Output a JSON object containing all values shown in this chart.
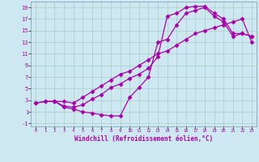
{
  "xlabel": "Windchill (Refroidissement éolien,°C)",
  "bg_color": "#cde8f0",
  "grid_color": "#aacccc",
  "line_color": "#aa00aa",
  "xlim": [
    -0.5,
    23.5
  ],
  "ylim": [
    -1.5,
    20
  ],
  "xticks": [
    0,
    1,
    2,
    3,
    4,
    5,
    6,
    7,
    8,
    9,
    10,
    11,
    12,
    13,
    14,
    15,
    16,
    17,
    18,
    19,
    20,
    21,
    22,
    23
  ],
  "yticks": [
    -1,
    1,
    3,
    5,
    7,
    9,
    11,
    13,
    15,
    17,
    19
  ],
  "line1_x": [
    0,
    1,
    2,
    3,
    4,
    5,
    6,
    7,
    8,
    9,
    10,
    11,
    12,
    13,
    14,
    15,
    16,
    17,
    18,
    19,
    20,
    21,
    22,
    23
  ],
  "line1_y": [
    2.5,
    2.8,
    2.8,
    2.0,
    1.8,
    2.2,
    3.2,
    4.0,
    5.2,
    5.8,
    6.8,
    7.5,
    8.5,
    10.5,
    17.5,
    18.0,
    19.0,
    19.2,
    19.2,
    18.0,
    17.0,
    14.5,
    14.5,
    14.0
  ],
  "line2_x": [
    2,
    3,
    4,
    5,
    6,
    7,
    8,
    9,
    10,
    11,
    12,
    13,
    14,
    15,
    16,
    17,
    18,
    19,
    20,
    21,
    22,
    23
  ],
  "line2_y": [
    2.8,
    1.8,
    1.5,
    1.0,
    0.8,
    0.5,
    0.3,
    0.3,
    3.5,
    5.2,
    7.0,
    13.0,
    13.5,
    16.0,
    18.0,
    18.5,
    19.0,
    17.5,
    16.5,
    14.0,
    14.5,
    14.0
  ],
  "line3_x": [
    0,
    1,
    2,
    3,
    4,
    5,
    6,
    7,
    8,
    9,
    10,
    11,
    12,
    13,
    14,
    15,
    16,
    17,
    18,
    19,
    20,
    21,
    22,
    23
  ],
  "line3_y": [
    2.5,
    2.8,
    2.8,
    2.8,
    2.5,
    3.5,
    4.5,
    5.5,
    6.5,
    7.5,
    8.0,
    9.0,
    10.0,
    11.0,
    11.5,
    12.5,
    13.5,
    14.5,
    15.0,
    15.5,
    16.0,
    16.5,
    17.0,
    13.0
  ]
}
